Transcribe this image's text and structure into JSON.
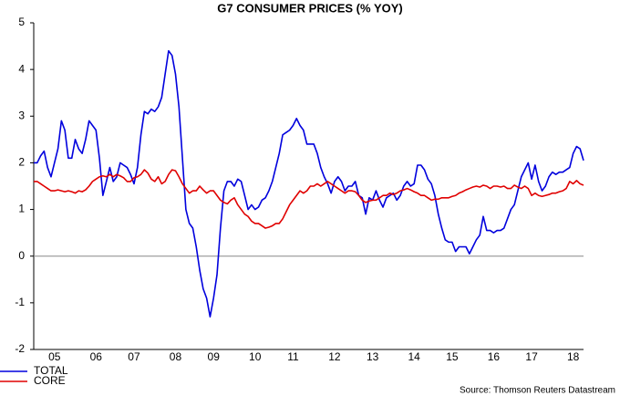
{
  "chart_data": {
    "type": "line",
    "title": "G7 CONSUMER PRICES (% YOY)",
    "source": "Source: Thomson Reuters Datastream",
    "categories": [
      null,
      null,
      null,
      null,
      null,
      null,
      "05",
      null,
      null,
      null,
      null,
      null,
      null,
      null,
      null,
      null,
      null,
      null,
      "06",
      null,
      null,
      null,
      null,
      null,
      null,
      null,
      null,
      null,
      null,
      "07",
      null,
      null,
      null,
      null,
      null,
      null,
      null,
      null,
      null,
      null,
      null,
      "08",
      null,
      null,
      null,
      null,
      null,
      null,
      null,
      null,
      null,
      null,
      "09",
      null,
      null,
      null,
      null,
      null,
      null,
      null,
      null,
      null,
      null,
      null,
      "10",
      null,
      null,
      null,
      null,
      null,
      null,
      null,
      null,
      null,
      null,
      "11",
      null,
      null,
      null,
      null,
      null,
      null,
      null,
      null,
      null,
      null,
      null,
      "12",
      null,
      null,
      null,
      null,
      null,
      null,
      null,
      null,
      null,
      null,
      "13",
      null,
      null,
      null,
      null,
      null,
      null,
      null,
      null,
      null,
      null,
      null,
      "14",
      null,
      null,
      null,
      null,
      null,
      null,
      null,
      null,
      null,
      null,
      "15",
      null,
      null,
      null,
      null,
      null,
      null,
      null,
      null,
      null,
      null,
      null,
      "16",
      null,
      null,
      null,
      null,
      null,
      null,
      null,
      null,
      null,
      null,
      "17",
      null,
      null,
      null,
      null,
      null,
      null,
      null,
      null,
      null,
      null,
      null,
      "18",
      null,
      null,
      null
    ],
    "series": [
      {
        "name": "TOTAL",
        "color": "#0000dd",
        "values": [
          2.0,
          2.0,
          2.15,
          2.25,
          1.9,
          1.7,
          2.0,
          2.3,
          2.9,
          2.7,
          2.1,
          2.1,
          2.5,
          2.3,
          2.2,
          2.5,
          2.9,
          2.8,
          2.7,
          2.1,
          1.3,
          1.6,
          1.9,
          1.6,
          1.7,
          2.0,
          1.95,
          1.9,
          1.75,
          1.55,
          1.9,
          2.6,
          3.1,
          3.05,
          3.15,
          3.1,
          3.2,
          3.4,
          3.9,
          4.4,
          4.3,
          3.9,
          3.2,
          2.1,
          1.0,
          0.7,
          0.6,
          0.2,
          -0.3,
          -0.7,
          -0.9,
          -1.3,
          -0.9,
          -0.4,
          0.6,
          1.4,
          1.6,
          1.6,
          1.5,
          1.65,
          1.6,
          1.3,
          1.0,
          1.1,
          1.0,
          1.05,
          1.2,
          1.25,
          1.4,
          1.6,
          1.9,
          2.2,
          2.6,
          2.65,
          2.7,
          2.8,
          2.95,
          2.8,
          2.7,
          2.4,
          2.4,
          2.4,
          2.2,
          1.9,
          1.7,
          1.55,
          1.35,
          1.6,
          1.7,
          1.6,
          1.4,
          1.5,
          1.5,
          1.6,
          1.3,
          1.25,
          0.9,
          1.25,
          1.2,
          1.4,
          1.2,
          1.05,
          1.25,
          1.3,
          1.35,
          1.2,
          1.3,
          1.5,
          1.6,
          1.5,
          1.55,
          1.95,
          1.95,
          1.85,
          1.65,
          1.55,
          1.3,
          0.9,
          0.6,
          0.35,
          0.3,
          0.3,
          0.1,
          0.2,
          0.2,
          0.2,
          0.05,
          0.2,
          0.35,
          0.45,
          0.85,
          0.55,
          0.55,
          0.5,
          0.55,
          0.55,
          0.6,
          0.8,
          1.0,
          1.1,
          1.4,
          1.7,
          1.85,
          2.0,
          1.65,
          1.95,
          1.6,
          1.4,
          1.5,
          1.7,
          1.8,
          1.75,
          1.8,
          1.8,
          1.85,
          1.9,
          2.2,
          2.35,
          2.3,
          2.05
        ]
      },
      {
        "name": "CORE",
        "color": "#e00000",
        "values": [
          1.6,
          1.6,
          1.55,
          1.5,
          1.45,
          1.4,
          1.4,
          1.42,
          1.4,
          1.38,
          1.4,
          1.38,
          1.35,
          1.4,
          1.38,
          1.42,
          1.5,
          1.6,
          1.65,
          1.7,
          1.72,
          1.7,
          1.75,
          1.7,
          1.75,
          1.72,
          1.68,
          1.6,
          1.6,
          1.68,
          1.7,
          1.75,
          1.85,
          1.78,
          1.65,
          1.6,
          1.7,
          1.55,
          1.6,
          1.75,
          1.85,
          1.83,
          1.7,
          1.55,
          1.45,
          1.35,
          1.4,
          1.4,
          1.5,
          1.42,
          1.35,
          1.4,
          1.4,
          1.3,
          1.2,
          1.15,
          1.12,
          1.2,
          1.25,
          1.1,
          1.0,
          0.9,
          0.85,
          0.75,
          0.7,
          0.7,
          0.65,
          0.6,
          0.62,
          0.65,
          0.7,
          0.7,
          0.8,
          0.95,
          1.1,
          1.2,
          1.3,
          1.4,
          1.35,
          1.4,
          1.5,
          1.5,
          1.55,
          1.5,
          1.55,
          1.6,
          1.55,
          1.5,
          1.45,
          1.4,
          1.35,
          1.4,
          1.4,
          1.38,
          1.3,
          1.2,
          1.15,
          1.18,
          1.2,
          1.2,
          1.25,
          1.3,
          1.3,
          1.35,
          1.32,
          1.35,
          1.4,
          1.42,
          1.45,
          1.42,
          1.38,
          1.35,
          1.3,
          1.3,
          1.25,
          1.2,
          1.22,
          1.22,
          1.25,
          1.25,
          1.25,
          1.28,
          1.3,
          1.35,
          1.38,
          1.42,
          1.45,
          1.48,
          1.5,
          1.48,
          1.52,
          1.5,
          1.45,
          1.5,
          1.5,
          1.48,
          1.5,
          1.45,
          1.45,
          1.52,
          1.48,
          1.45,
          1.5,
          1.45,
          1.3,
          1.35,
          1.3,
          1.28,
          1.3,
          1.32,
          1.35,
          1.35,
          1.38,
          1.4,
          1.45,
          1.6,
          1.55,
          1.62,
          1.55,
          1.52
        ]
      }
    ],
    "ylim": [
      -2,
      5
    ],
    "yticks": [
      -2,
      -1,
      0,
      1,
      2,
      3,
      4,
      5
    ],
    "grid": false,
    "legend": "bottom-left"
  }
}
